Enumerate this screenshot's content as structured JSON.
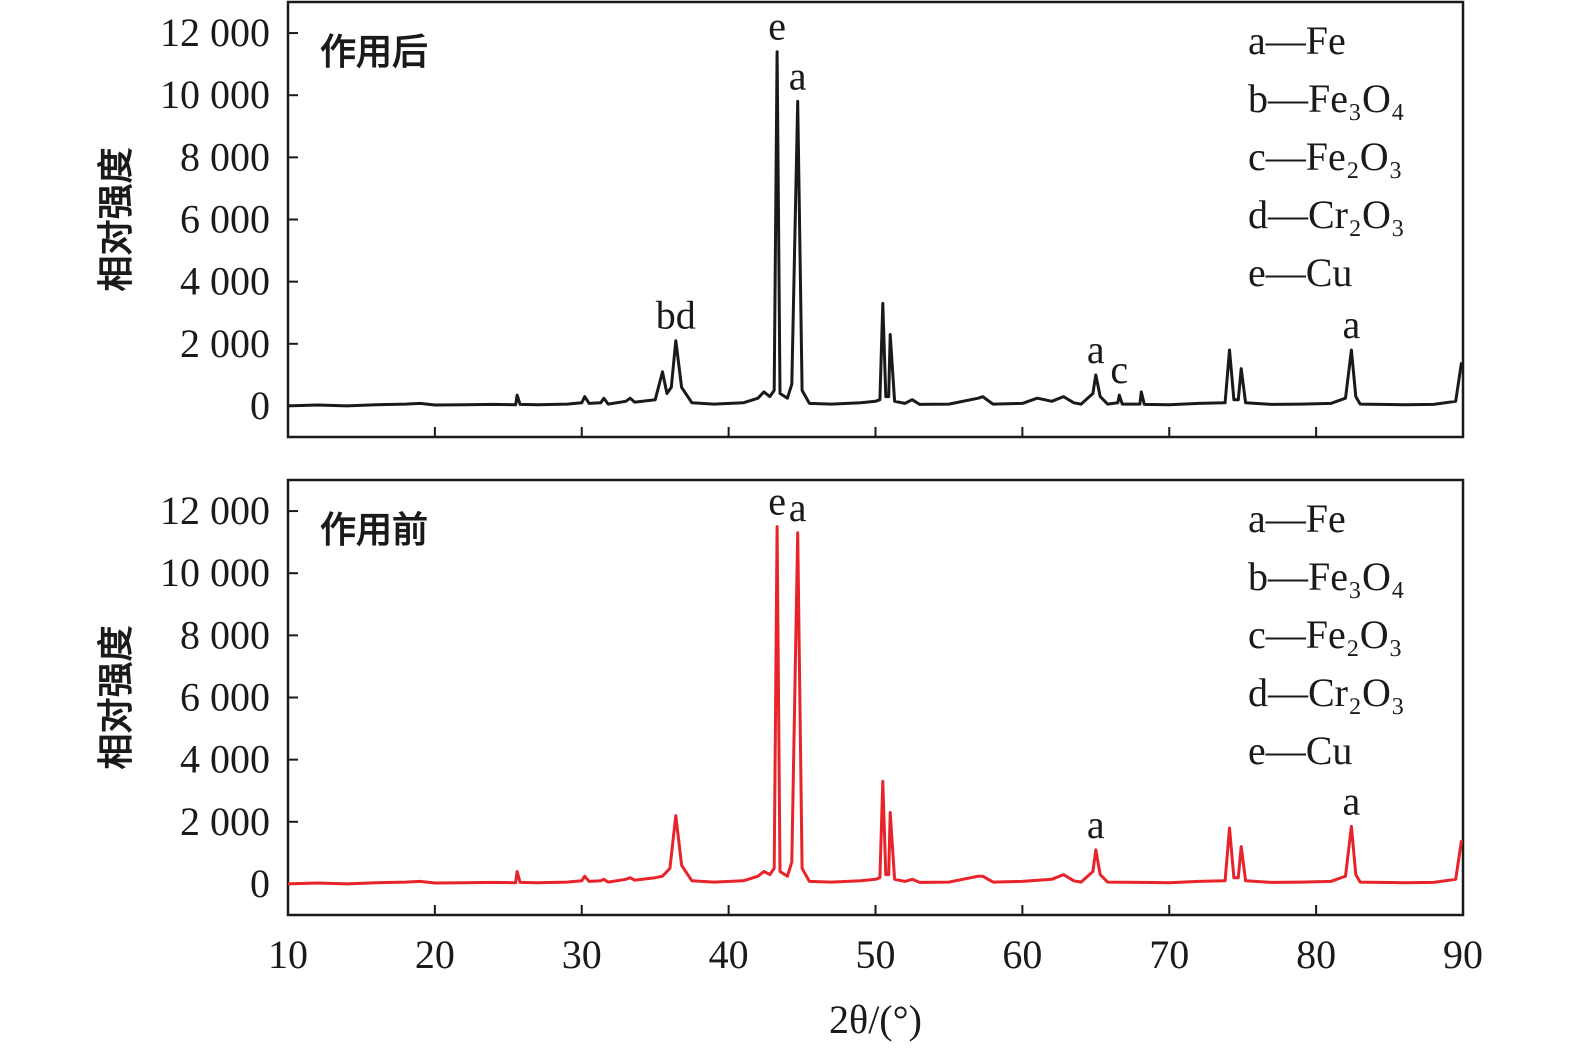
{
  "chart_data": [
    {
      "type": "line",
      "xlim": [
        10,
        90
      ],
      "ylim": [
        -1000,
        13000
      ],
      "xticks": [
        10,
        20,
        30,
        40,
        50,
        60,
        70,
        80,
        90
      ],
      "yticks": [
        0,
        {
          "value": 2000,
          "label": "2 000"
        },
        {
          "value": 4000,
          "label": "4 000"
        },
        {
          "value": 6000,
          "label": "6 000"
        },
        {
          "value": 8000,
          "label": "8 000"
        },
        {
          "value": 10000,
          "label": "10 000"
        },
        {
          "value": 12000,
          "label": "12 000"
        }
      ],
      "ylabel": "相对强度",
      "legend_entries": [
        "a—Fe",
        "b—Fe₃O₄",
        "c—Fe₂O₃",
        "d—Cr₂O₃",
        "e—Cu"
      ],
      "x": [
        10,
        12,
        14,
        16,
        18,
        19,
        20,
        22,
        24,
        25.5,
        25.6,
        25.8,
        27,
        29,
        30,
        30.2,
        30.5,
        31.3,
        31.5,
        31.8,
        33,
        33.3,
        33.6,
        35,
        35.5,
        35.8,
        36.1,
        36.4,
        36.8,
        37.5,
        39,
        41,
        42,
        42.4,
        42.8,
        43.1,
        43.3,
        43.5,
        44,
        44.3,
        44.7,
        45,
        45.5,
        47,
        49,
        50,
        50.3,
        50.5,
        50.7,
        50.9,
        51,
        51.3,
        52,
        52.5,
        53,
        55,
        57,
        57.3,
        58,
        60,
        61,
        61.5,
        62,
        62.8,
        63.5,
        64,
        64.8,
        65,
        65.3,
        65.8,
        66.5,
        66.6,
        66.8,
        68,
        68.1,
        68.3,
        70,
        72,
        73.8,
        74.1,
        74.4,
        74.7,
        74.9,
        75.2,
        77,
        79,
        81,
        82,
        82.4,
        82.7,
        83,
        86,
        88,
        89.5,
        89.9
      ],
      "series": [
        {
          "name": "作用后",
          "color": "#1a1a1a",
          "values": [
            0,
            30,
            0,
            40,
            60,
            80,
            30,
            40,
            50,
            40,
            350,
            50,
            40,
            60,
            100,
            300,
            80,
            100,
            250,
            60,
            150,
            250,
            120,
            200,
            1100,
            400,
            600,
            2100,
            600,
            100,
            60,
            100,
            250,
            450,
            300,
            500,
            11400,
            400,
            250,
            700,
            9800,
            500,
            80,
            60,
            100,
            150,
            200,
            3300,
            300,
            300,
            2300,
            150,
            80,
            200,
            50,
            60,
            250,
            300,
            60,
            80,
            250,
            200,
            150,
            300,
            100,
            60,
            400,
            1000,
            300,
            60,
            100,
            350,
            60,
            60,
            450,
            50,
            40,
            80,
            100,
            1800,
            200,
            200,
            1200,
            100,
            50,
            60,
            80,
            250,
            1800,
            300,
            60,
            40,
            50,
            150,
            1400
          ]
        }
      ],
      "annotations": [
        {
          "text": "bd",
          "x": 36.4,
          "y": 2100
        },
        {
          "text": "e",
          "x": 43.3,
          "y": 11400
        },
        {
          "text": "a",
          "x": 44.7,
          "y": 9800
        },
        {
          "text": "a",
          "x": 65,
          "y": 1000
        },
        {
          "text": "c",
          "x": 66.6,
          "y": 350
        },
        {
          "text": "a",
          "x": 82.4,
          "y": 1800
        }
      ]
    },
    {
      "type": "line",
      "xlim": [
        10,
        90
      ],
      "ylim": [
        -1000,
        13000
      ],
      "xticks": [
        10,
        20,
        30,
        40,
        50,
        60,
        70,
        80,
        90
      ],
      "yticks": [
        0,
        {
          "value": 2000,
          "label": "2 000"
        },
        {
          "value": 4000,
          "label": "4 000"
        },
        {
          "value": 6000,
          "label": "6 000"
        },
        {
          "value": 8000,
          "label": "8 000"
        },
        {
          "value": 10000,
          "label": "10 000"
        },
        {
          "value": 12000,
          "label": "12 000"
        }
      ],
      "xlabel": "2θ/(°)",
      "ylabel": "相对强度",
      "legend_entries": [
        "a—Fe",
        "b—Fe₃O₄",
        "c—Fe₂O₃",
        "d—Cr₂O₃",
        "e—Cu"
      ],
      "x": [
        10,
        12,
        14,
        16,
        18,
        19,
        20,
        22,
        24,
        25.5,
        25.6,
        25.8,
        27,
        29,
        30,
        30.2,
        30.5,
        31.3,
        31.5,
        31.8,
        33,
        33.3,
        33.6,
        35,
        35.5,
        36,
        36.4,
        36.8,
        37.5,
        39,
        41,
        42,
        42.4,
        42.8,
        43.1,
        43.3,
        43.5,
        44,
        44.3,
        44.7,
        45,
        45.5,
        47,
        49,
        50,
        50.3,
        50.5,
        50.7,
        50.9,
        51,
        51.3,
        52,
        52.5,
        53,
        55,
        57,
        57.3,
        58,
        60,
        62,
        62.8,
        63.5,
        64,
        64.8,
        65,
        65.3,
        65.8,
        68,
        70,
        72,
        73.8,
        74.1,
        74.4,
        74.7,
        74.9,
        75.2,
        77,
        79,
        81,
        82,
        82.4,
        82.7,
        83,
        86,
        88,
        89.5,
        89.9
      ],
      "series": [
        {
          "name": "作用前",
          "color": "#e8232a",
          "values": [
            0,
            30,
            0,
            40,
            60,
            80,
            30,
            40,
            50,
            40,
            400,
            50,
            40,
            60,
            100,
            250,
            80,
            100,
            150,
            60,
            150,
            200,
            120,
            200,
            250,
            500,
            2200,
            600,
            100,
            60,
            100,
            250,
            400,
            300,
            500,
            11500,
            400,
            250,
            700,
            11300,
            500,
            80,
            60,
            100,
            150,
            200,
            3300,
            300,
            300,
            2300,
            150,
            80,
            150,
            50,
            60,
            250,
            250,
            60,
            80,
            150,
            300,
            100,
            60,
            400,
            1100,
            300,
            60,
            50,
            40,
            80,
            100,
            1800,
            200,
            200,
            1200,
            100,
            50,
            60,
            80,
            250,
            1850,
            300,
            60,
            40,
            50,
            150,
            1400
          ]
        }
      ],
      "annotations": [
        {
          "text": "e",
          "x": 43.3,
          "y": 11500
        },
        {
          "text": "a",
          "x": 44.7,
          "y": 11300
        },
        {
          "text": "a",
          "x": 65,
          "y": 1100
        },
        {
          "text": "a",
          "x": 82.4,
          "y": 1850
        }
      ]
    }
  ]
}
